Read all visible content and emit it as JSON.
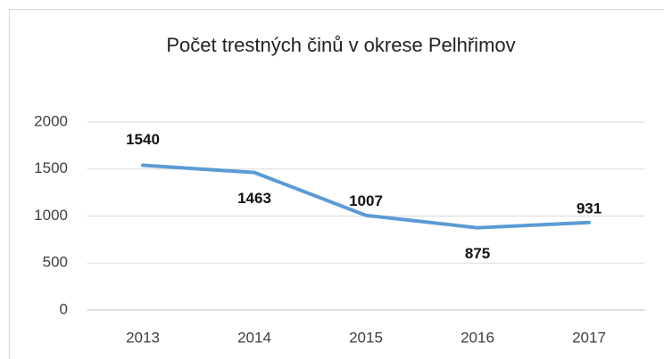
{
  "chart_data": {
    "type": "line",
    "title": "Počet trestných činů v okrese Pelhřimov",
    "categories": [
      "2013",
      "2014",
      "2015",
      "2016",
      "2017"
    ],
    "series": [
      {
        "name": "Počet trestných činů",
        "color": "#5b9bd5",
        "values": [
          1540,
          1463,
          1007,
          875,
          931
        ]
      }
    ],
    "ylim": [
      0,
      2000
    ],
    "yticks": [
      0,
      500,
      1000,
      1500,
      2000
    ],
    "grid": true,
    "data_labels": true
  }
}
